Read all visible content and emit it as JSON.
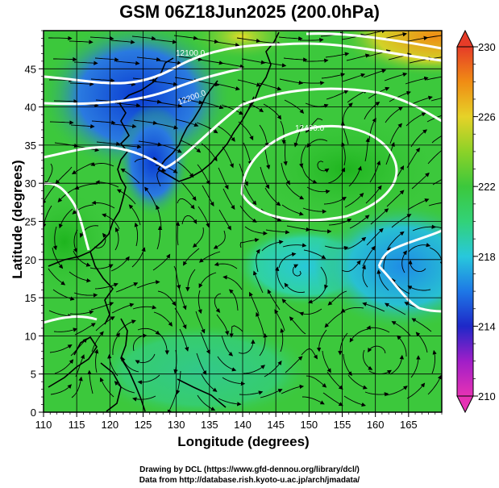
{
  "title": "GSM 06Z18Jun2025 (200.0hPa)",
  "xlabel": "Longitude (degrees)",
  "ylabel": "Latitude  (degrees)",
  "credit_line1": "Drawing by DCL (https://www.gfd-dennou.org/library/dcl/)",
  "credit_line2": "Data from http://database.rish.kyoto-u.ac.jp/arch/jmadata/",
  "x_ticks": [
    "110",
    "115",
    "120",
    "125",
    "130",
    "135",
    "140",
    "145",
    "150",
    "155",
    "160",
    "165"
  ],
  "y_ticks": [
    "0",
    "5",
    "10",
    "15",
    "20",
    "25",
    "30",
    "35",
    "40",
    "45"
  ],
  "colorbar_ticks": [
    "210",
    "214",
    "218",
    "222",
    "226",
    "230"
  ],
  "contour_labels": [
    "12100.0",
    "12200.0",
    "12400.0"
  ],
  "colors": {
    "field_green": "#3cc83c",
    "field_cyan": "#28d2aa",
    "field_blue": "#1e64dc",
    "field_orange": "#f0a014",
    "contour": "#ffffff",
    "coast": "#000000"
  }
}
